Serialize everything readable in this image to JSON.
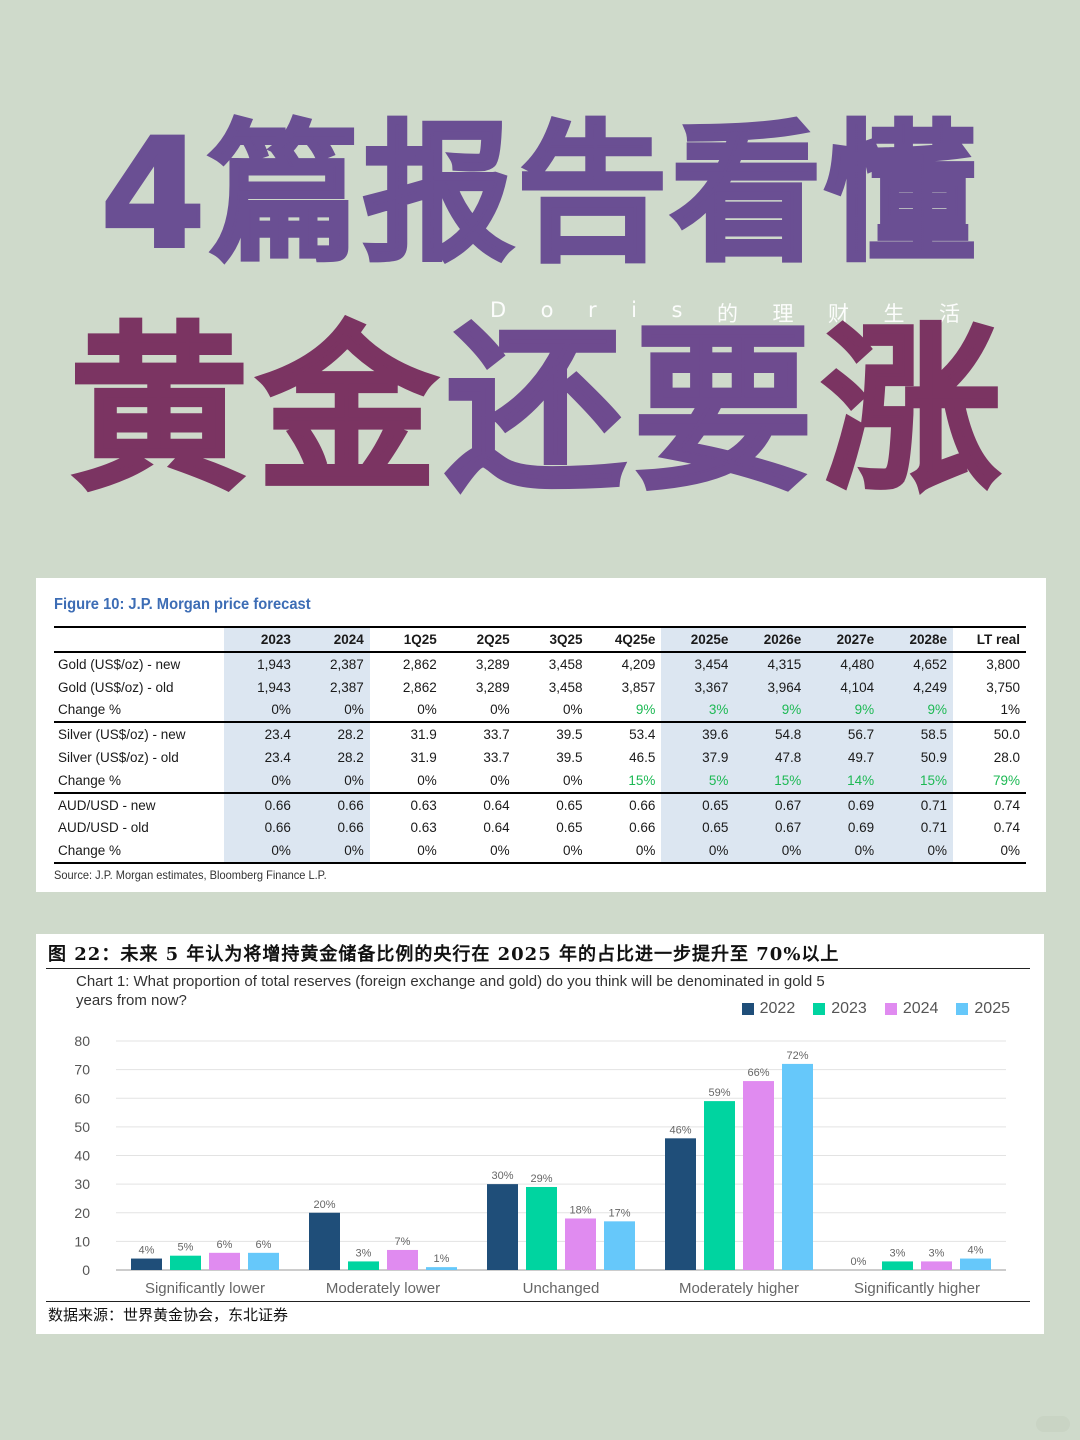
{
  "hero": {
    "line1": "4篇报告看懂",
    "brand": [
      "D",
      "o",
      "r",
      "i",
      "s",
      "的",
      "理",
      "财",
      "生",
      "活"
    ],
    "line2": [
      "黄",
      "金",
      "还",
      "要",
      "涨"
    ],
    "line2_colors": [
      "#7b3462",
      "#7b3462",
      "#6e4b8f",
      "#6e4b8f",
      "#7b3462"
    ]
  },
  "forecast": {
    "title": "Figure 10: J.P. Morgan price forecast",
    "columns": [
      "",
      "2023",
      "2024",
      "1Q25",
      "2Q25",
      "3Q25",
      "4Q25e",
      "2025e",
      "2026e",
      "2027e",
      "2028e",
      "LT  real"
    ],
    "rows": [
      {
        "label": "Gold (US$/oz) - new",
        "values": [
          "1,943",
          "2,387",
          "2,862",
          "3,289",
          "3,458",
          "4,209",
          "3,454",
          "4,315",
          "4,480",
          "4,652",
          "3,800"
        ]
      },
      {
        "label": "Gold (US$/oz) - old",
        "values": [
          "1,943",
          "2,387",
          "2,862",
          "3,289",
          "3,458",
          "3,857",
          "3,367",
          "3,964",
          "4,104",
          "4,249",
          "3,750"
        ]
      },
      {
        "label": "Change %",
        "values": [
          "0%",
          "0%",
          "0%",
          "0%",
          "0%",
          "9%",
          "3%",
          "9%",
          "9%",
          "9%",
          "1%"
        ],
        "green": [
          false,
          false,
          false,
          false,
          false,
          true,
          true,
          true,
          true,
          true,
          false
        ]
      },
      {
        "label": "Silver (US$/oz) - new",
        "values": [
          "23.4",
          "28.2",
          "31.9",
          "33.7",
          "39.5",
          "53.4",
          "39.6",
          "54.8",
          "56.7",
          "58.5",
          "50.0"
        ]
      },
      {
        "label": "Silver (US$/oz) - old",
        "values": [
          "23.4",
          "28.2",
          "31.9",
          "33.7",
          "39.5",
          "46.5",
          "37.9",
          "47.8",
          "49.7",
          "50.9",
          "28.0"
        ]
      },
      {
        "label": "Change %",
        "values": [
          "0%",
          "0%",
          "0%",
          "0%",
          "0%",
          "15%",
          "5%",
          "15%",
          "14%",
          "15%",
          "79%"
        ],
        "green": [
          false,
          false,
          false,
          false,
          false,
          true,
          true,
          true,
          true,
          true,
          true
        ]
      },
      {
        "label": "AUD/USD - new",
        "values": [
          "0.66",
          "0.66",
          "0.63",
          "0.64",
          "0.65",
          "0.66",
          "0.65",
          "0.67",
          "0.69",
          "0.71",
          "0.74"
        ]
      },
      {
        "label": "AUD/USD - old",
        "values": [
          "0.66",
          "0.66",
          "0.63",
          "0.64",
          "0.65",
          "0.66",
          "0.65",
          "0.67",
          "0.69",
          "0.71",
          "0.74"
        ]
      },
      {
        "label": "Change %",
        "values": [
          "0%",
          "0%",
          "0%",
          "0%",
          "0%",
          "0%",
          "0%",
          "0%",
          "0%",
          "0%",
          "0%"
        ],
        "green": [
          false,
          false,
          false,
          false,
          false,
          false,
          false,
          false,
          false,
          false,
          false
        ]
      }
    ],
    "source": "Source: J.P. Morgan estimates, Bloomberg Finance L.P."
  },
  "figure22": {
    "title": "图  22：未来 5 年认为将增持黄金储备比例的央行在 2025 年的占比进一步提升至 70%以上",
    "source": "数据来源：世界黄金协会，东北证券"
  },
  "chart_data": {
    "type": "bar",
    "title": "Chart 1: What proportion of total reserves (foreign exchange and gold) do you think will be denominated in gold 5 years from now?",
    "categories": [
      "Significantly lower",
      "Moderately lower",
      "Unchanged",
      "Moderately higher",
      "Significantly higher"
    ],
    "series": [
      {
        "name": "2022",
        "color": "#1f4e79",
        "values": [
          4,
          20,
          30,
          46,
          0
        ],
        "labels": [
          "4%",
          "20%",
          "30%",
          "46%",
          "0%"
        ]
      },
      {
        "name": "2023",
        "color": "#00d4a0",
        "values": [
          5,
          3,
          29,
          59,
          3
        ],
        "labels": [
          "5%",
          "3%",
          "29%",
          "59%",
          "3%"
        ]
      },
      {
        "name": "2024",
        "color": "#e08bf0",
        "values": [
          6,
          7,
          18,
          66,
          3
        ],
        "labels": [
          "6%",
          "7%",
          "18%",
          "66%",
          "3%"
        ]
      },
      {
        "name": "2025",
        "color": "#66c8fa",
        "values": [
          6,
          1,
          17,
          72,
          4
        ],
        "labels": [
          "6%",
          "1%",
          "17%",
          "72%",
          "4%"
        ]
      }
    ],
    "ylim": [
      0,
      80
    ],
    "yticks": [
      0,
      10,
      20,
      30,
      40,
      50,
      60,
      70,
      80
    ],
    "grid": true,
    "legend_position": "top-right"
  }
}
